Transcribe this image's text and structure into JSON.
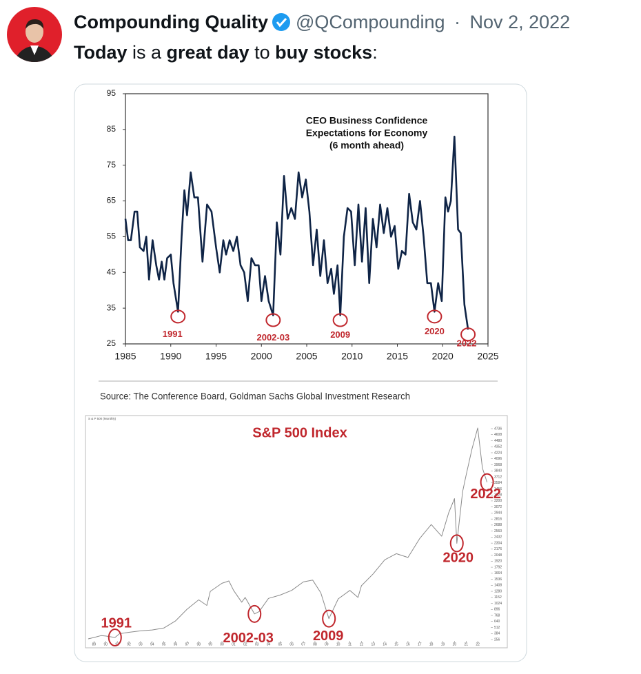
{
  "tweet": {
    "name": "Compounding Quality",
    "handle": "@QCompounding",
    "separator": "·",
    "date": "Nov 2, 2022",
    "text": [
      {
        "text": "Today",
        "bold": true
      },
      {
        "text": " is a ",
        "bold": false
      },
      {
        "text": "great day",
        "bold": true
      },
      {
        "text": " to ",
        "bold": false
      },
      {
        "text": "buy stocks",
        "bold": true
      },
      {
        "text": ":",
        "bold": false
      }
    ]
  },
  "chart_data": [
    {
      "type": "line",
      "title": [
        "CEO Business Confidence",
        "Expectations for Economy",
        "(6 month ahead)"
      ],
      "x": [
        1985,
        1985.3,
        1985.6,
        1986,
        1986.3,
        1986.6,
        1987,
        1987.3,
        1987.6,
        1988,
        1988.4,
        1988.7,
        1989,
        1989.3,
        1989.6,
        1990,
        1990.3,
        1990.8,
        1991.2,
        1991.5,
        1991.8,
        1992.2,
        1992.6,
        1993,
        1993.5,
        1994,
        1994.5,
        1995,
        1995.4,
        1995.8,
        1996.1,
        1996.5,
        1996.9,
        1997.3,
        1997.7,
        1998.1,
        1998.5,
        1998.9,
        1999.3,
        1999.7,
        2000,
        2000.4,
        2000.8,
        2001.3,
        2001.7,
        2002.1,
        2002.5,
        2002.9,
        2003.3,
        2003.7,
        2004.1,
        2004.5,
        2004.9,
        2005.3,
        2005.7,
        2006.1,
        2006.5,
        2006.9,
        2007.3,
        2007.7,
        2008,
        2008.4,
        2008.7,
        2009.1,
        2009.5,
        2009.9,
        2010.3,
        2010.7,
        2011.1,
        2011.5,
        2011.9,
        2012.3,
        2012.7,
        2013.1,
        2013.5,
        2013.9,
        2014.3,
        2014.7,
        2015.1,
        2015.5,
        2015.9,
        2016.3,
        2016.7,
        2017.1,
        2017.5,
        2017.9,
        2018.3,
        2018.7,
        2019.1,
        2019.5,
        2019.9,
        2020.3,
        2020.6,
        2020.9,
        2021.3,
        2021.7,
        2022,
        2022.4,
        2022.8
      ],
      "values": [
        60,
        54,
        54,
        62,
        62,
        52,
        51,
        55,
        43,
        54,
        47,
        43,
        48,
        43,
        49,
        50,
        42,
        34,
        55,
        68,
        61,
        73,
        66,
        66,
        48,
        64,
        62,
        52,
        45,
        54,
        50,
        54,
        51,
        55,
        47,
        45,
        37,
        49,
        47,
        47,
        37,
        44,
        37,
        33,
        59,
        50,
        72,
        60,
        63,
        60,
        73,
        66,
        71,
        62,
        47,
        57,
        44,
        54,
        42,
        46,
        39,
        47,
        33,
        55,
        63,
        62,
        47,
        64,
        48,
        63,
        42,
        60,
        52,
        64,
        56,
        63,
        55,
        58,
        46,
        51,
        50,
        67,
        59,
        57,
        65,
        55,
        42,
        42,
        34,
        42,
        37,
        66,
        62,
        65,
        83,
        57,
        56,
        36,
        29
      ],
      "color": "#0f2446",
      "xlim": [
        1985,
        2025
      ],
      "xticks": [
        1985,
        1990,
        1995,
        2000,
        2005,
        2010,
        2015,
        2020,
        2025
      ],
      "ylim": [
        25,
        95
      ],
      "yticks": [
        25,
        35,
        45,
        55,
        65,
        75,
        85,
        95
      ],
      "annotation_color": "#c0272d",
      "annotations": [
        {
          "text": "1991",
          "x": 1990.8,
          "y": 34
        },
        {
          "text": "2002-03",
          "x": 2001.3,
          "y": 33
        },
        {
          "text": "2009",
          "x": 2008.7,
          "y": 33
        },
        {
          "text": "2020",
          "x": 2019.1,
          "y": 34
        },
        {
          "text": "2022",
          "x": 2022.8,
          "y": 29
        }
      ],
      "source": "Source: The Conference Board, Goldman Sachs Global Investment Research"
    },
    {
      "type": "line",
      "title": "S&P 500 Index",
      "subtitle": "S & P 500 (Monthly)",
      "x": [
        1988.5,
        1989,
        1989.6,
        1990,
        1990.8,
        1991.2,
        1992,
        1993,
        1994,
        1995,
        1996,
        1997,
        1998,
        1998.7,
        1999,
        2000,
        2000.6,
        2001,
        2001.7,
        2002,
        2002.8,
        2003.2,
        2004,
        2005,
        2006,
        2007,
        2007.8,
        2008.5,
        2009.2,
        2010,
        2011,
        2011.7,
        2012,
        2013,
        2014,
        2015,
        2016,
        2017,
        2018,
        2018.9,
        2019.5,
        2020,
        2020.2,
        2020.7,
        2021,
        2021.5,
        2022,
        2022.4,
        2022.8
      ],
      "values": [
        270,
        300,
        340,
        330,
        300,
        380,
        410,
        440,
        460,
        500,
        650,
        900,
        1100,
        980,
        1280,
        1450,
        1500,
        1300,
        1050,
        1150,
        800,
        850,
        1130,
        1200,
        1300,
        1480,
        1520,
        1250,
        700,
        1120,
        1300,
        1150,
        1400,
        1650,
        1950,
        2080,
        2000,
        2400,
        2700,
        2450,
        2950,
        3250,
        2300,
        3400,
        3750,
        4300,
        4750,
        3900,
        3600
      ],
      "color": "#8a8a8a",
      "title_color": "#c0272d",
      "xlim": [
        1988.5,
        2023
      ],
      "xticks": [
        {
          "value": 1989,
          "label": "89"
        },
        {
          "value": 1990,
          "label": "90"
        },
        {
          "value": 1991,
          "label": "91"
        },
        {
          "value": 1992,
          "label": "92"
        },
        {
          "value": 1993,
          "label": "93"
        },
        {
          "value": 1994,
          "label": "94"
        },
        {
          "value": 1995,
          "label": "95"
        },
        {
          "value": 1996,
          "label": "96"
        },
        {
          "value": 1997,
          "label": "97"
        },
        {
          "value": 1998,
          "label": "98"
        },
        {
          "value": 1999,
          "label": "99"
        },
        {
          "value": 2000,
          "label": "00"
        },
        {
          "value": 2001,
          "label": "01"
        },
        {
          "value": 2002,
          "label": "02"
        },
        {
          "value": 2003,
          "label": "03"
        },
        {
          "value": 2004,
          "label": "04"
        },
        {
          "value": 2005,
          "label": "05"
        },
        {
          "value": 2006,
          "label": "06"
        },
        {
          "value": 2007,
          "label": "07"
        },
        {
          "value": 2008,
          "label": "08"
        },
        {
          "value": 2009,
          "label": "09"
        },
        {
          "value": 2010,
          "label": "10"
        },
        {
          "value": 2011,
          "label": "11"
        },
        {
          "value": 2012,
          "label": "12"
        },
        {
          "value": 2013,
          "label": "13"
        },
        {
          "value": 2014,
          "label": "14"
        },
        {
          "value": 2015,
          "label": "15"
        },
        {
          "value": 2016,
          "label": "16"
        },
        {
          "value": 2017,
          "label": "17"
        },
        {
          "value": 2018,
          "label": "18"
        },
        {
          "value": 2019,
          "label": "19"
        },
        {
          "value": 2020,
          "label": "20"
        },
        {
          "value": 2021,
          "label": "21"
        },
        {
          "value": 2022,
          "label": "22"
        }
      ],
      "ylim": [
        256,
        4736
      ],
      "yticks": [
        256,
        384,
        512,
        640,
        768,
        896,
        1024,
        1152,
        1280,
        1408,
        1536,
        1664,
        1792,
        1920,
        2048,
        2176,
        2304,
        2432,
        2560,
        2688,
        2816,
        2944,
        3072,
        3200,
        3328,
        3456,
        3584,
        3712,
        3840,
        3968,
        4096,
        4224,
        4352,
        4480,
        4608,
        4736
      ],
      "annotation_color": "#c0272d",
      "annotations": [
        {
          "text": "1991",
          "x": 1990.8,
          "y": 300
        },
        {
          "text": "2002-03",
          "x": 2002.8,
          "y": 800
        },
        {
          "text": "2009",
          "x": 2009.2,
          "y": 700
        },
        {
          "text": "2020",
          "x": 2020.2,
          "y": 2300
        },
        {
          "text": "2022",
          "x": 2022.8,
          "y": 3600
        }
      ]
    }
  ]
}
